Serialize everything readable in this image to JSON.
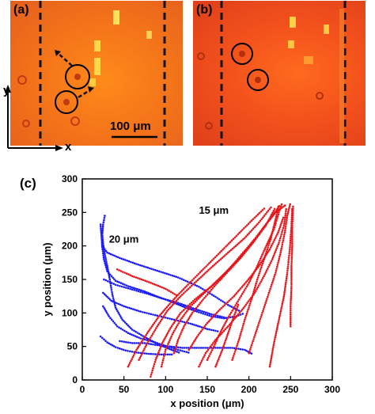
{
  "panels": {
    "a": {
      "label": "(a)",
      "scale_bar": "100 μm"
    },
    "b": {
      "label": "(b)"
    }
  },
  "axes_indicator": {
    "x": "x",
    "y": "y"
  },
  "chart_data": {
    "label": "(c)",
    "type": "scatter",
    "xlabel": "x position (μm)",
    "ylabel": "y position (μm)",
    "xlim": [
      0,
      300
    ],
    "ylim": [
      0,
      300
    ],
    "xticks": [
      0,
      50,
      100,
      150,
      200,
      250,
      300
    ],
    "yticks": [
      0,
      50,
      100,
      150,
      200,
      250,
      300
    ],
    "colors": {
      "blue": "#1a1aff",
      "red": "#e8141a"
    },
    "series": [
      {
        "name": "20 μm",
        "color": "blue",
        "tracks": [
          [
            [
              27,
              245
            ],
            [
              25,
              232
            ],
            [
              24,
              218
            ],
            [
              25,
              203
            ],
            [
              27,
              188
            ],
            [
              30,
              170
            ],
            [
              33,
              150
            ],
            [
              36,
              128
            ],
            [
              40,
              108
            ],
            [
              48,
              90
            ],
            [
              60,
              75
            ],
            [
              75,
              64
            ],
            [
              90,
              54
            ],
            [
              105,
              46
            ],
            [
              118,
              40
            ]
          ],
          [
            [
              22,
              232
            ],
            [
              23,
              215
            ],
            [
              24,
              198
            ],
            [
              26,
              180
            ],
            [
              30,
              162
            ],
            [
              40,
              148
            ],
            [
              55,
              140
            ],
            [
              75,
              132
            ],
            [
              95,
              122
            ],
            [
              115,
              115
            ],
            [
              135,
              106
            ],
            [
              155,
              98
            ],
            [
              175,
              92
            ]
          ],
          [
            [
              24,
              200
            ],
            [
              30,
              190
            ],
            [
              45,
              182
            ],
            [
              65,
              173
            ],
            [
              90,
              163
            ],
            [
              115,
              153
            ],
            [
              140,
              139
            ],
            [
              160,
              124
            ],
            [
              175,
              112
            ],
            [
              190,
              102
            ]
          ],
          [
            [
              26,
              150
            ],
            [
              40,
              142
            ],
            [
              60,
              135
            ],
            [
              80,
              128
            ],
            [
              100,
              120
            ],
            [
              120,
              110
            ],
            [
              140,
              101
            ],
            [
              155,
              95
            ],
            [
              170,
              92
            ],
            [
              185,
              95
            ],
            [
              195,
              100
            ]
          ],
          [
            [
              25,
              130
            ],
            [
              35,
              118
            ],
            [
              50,
              110
            ],
            [
              70,
              102
            ],
            [
              90,
              96
            ],
            [
              110,
              90
            ],
            [
              130,
              84
            ],
            [
              150,
              76
            ],
            [
              165,
              72
            ]
          ],
          [
            [
              25,
              110
            ],
            [
              32,
              95
            ],
            [
              42,
              80
            ],
            [
              55,
              70
            ],
            [
              70,
              62
            ],
            [
              85,
              57
            ],
            [
              100,
              51
            ],
            [
              115,
              45
            ],
            [
              130,
              40
            ]
          ],
          [
            [
              22,
              65
            ],
            [
              30,
              56
            ],
            [
              40,
              49
            ],
            [
              52,
              44
            ],
            [
              65,
              41
            ],
            [
              80,
              39
            ],
            [
              95,
              38
            ],
            [
              110,
              38
            ]
          ],
          [
            [
              45,
              58
            ],
            [
              60,
              55
            ],
            [
              75,
              55
            ],
            [
              90,
              52
            ],
            [
              105,
              50
            ],
            [
              120,
              48
            ],
            [
              140,
              48
            ],
            [
              155,
              48
            ],
            [
              165,
              48
            ],
            [
              180,
              48
            ],
            [
              195,
              45
            ],
            [
              205,
              38
            ]
          ]
        ]
      },
      {
        "name": "15 μm",
        "color": "red",
        "tracks": [
          [
            [
              55,
              20
            ],
            [
              65,
              45
            ],
            [
              78,
              70
            ],
            [
              92,
              95
            ],
            [
              108,
              118
            ],
            [
              125,
              140
            ],
            [
              145,
              165
            ],
            [
              165,
              190
            ],
            [
              185,
              215
            ],
            [
              205,
              240
            ],
            [
              220,
              258
            ]
          ],
          [
            [
              68,
              30
            ],
            [
              78,
              55
            ],
            [
              90,
              80
            ],
            [
              102,
              103
            ],
            [
              118,
              125
            ],
            [
              135,
              145
            ],
            [
              155,
              168
            ],
            [
              175,
              190
            ],
            [
              195,
              212
            ],
            [
              212,
              235
            ],
            [
              228,
              260
            ]
          ],
          [
            [
              82,
              5
            ],
            [
              88,
              30
            ],
            [
              96,
              55
            ],
            [
              106,
              78
            ],
            [
              118,
              100
            ],
            [
              135,
              120
            ],
            [
              155,
              140
            ],
            [
              172,
              160
            ],
            [
              188,
              182
            ],
            [
              205,
              205
            ],
            [
              220,
              230
            ],
            [
              232,
              258
            ]
          ],
          [
            [
              95,
              20
            ],
            [
              100,
              45
            ],
            [
              108,
              68
            ],
            [
              118,
              90
            ],
            [
              130,
              110
            ],
            [
              145,
              128
            ],
            [
              162,
              148
            ],
            [
              178,
              168
            ],
            [
              193,
              190
            ],
            [
              208,
              212
            ],
            [
              222,
              235
            ],
            [
              238,
              262
            ]
          ],
          [
            [
              110,
              40
            ],
            [
              115,
              60
            ],
            [
              122,
              80
            ],
            [
              132,
              100
            ],
            [
              145,
              120
            ],
            [
              160,
              142
            ],
            [
              175,
              162
            ],
            [
              190,
              182
            ],
            [
              205,
              205
            ],
            [
              218,
              228
            ],
            [
              232,
              250
            ],
            [
              245,
              262
            ]
          ],
          [
            [
              128,
              45
            ],
            [
              138,
              65
            ],
            [
              150,
              85
            ],
            [
              165,
              105
            ],
            [
              182,
              125
            ],
            [
              198,
              148
            ],
            [
              212,
              170
            ],
            [
              225,
              195
            ],
            [
              235,
              220
            ],
            [
              242,
              245
            ]
          ],
          [
            [
              150,
              30
            ],
            [
              158,
              50
            ],
            [
              166,
              72
            ],
            [
              176,
              95
            ],
            [
              188,
              120
            ],
            [
              200,
              145
            ],
            [
              210,
              170
            ],
            [
              220,
              198
            ],
            [
              230,
              225
            ],
            [
              236,
              250
            ],
            [
              240,
              265
            ]
          ],
          [
            [
              140,
              20
            ],
            [
              148,
              40
            ],
            [
              160,
              60
            ],
            [
              175,
              80
            ],
            [
              192,
              105
            ],
            [
              207,
              130
            ],
            [
              218,
              155
            ],
            [
              228,
              180
            ],
            [
              236,
              205
            ],
            [
              242,
              230
            ],
            [
              245,
              258
            ]
          ],
          [
            [
              180,
              30
            ],
            [
              188,
              60
            ],
            [
              195,
              90
            ],
            [
              203,
              120
            ],
            [
              210,
              150
            ],
            [
              218,
              180
            ],
            [
              226,
              210
            ],
            [
              232,
              240
            ],
            [
              236,
              262
            ]
          ],
          [
            [
              200,
              40
            ],
            [
              208,
              70
            ],
            [
              216,
              100
            ],
            [
              224,
              130
            ],
            [
              232,
              160
            ],
            [
              238,
              190
            ],
            [
              243,
              220
            ],
            [
              246,
              245
            ],
            [
              250,
              265
            ]
          ],
          [
            [
              225,
              20
            ],
            [
              230,
              55
            ],
            [
              236,
              90
            ],
            [
              242,
              125
            ],
            [
              246,
              160
            ],
            [
              249,
              195
            ],
            [
              251,
              230
            ],
            [
              252,
              258
            ]
          ],
          [
            [
              250,
              80
            ],
            [
              250,
              110
            ],
            [
              251,
              140
            ],
            [
              251,
              170
            ],
            [
              252,
              200
            ],
            [
              252,
              230
            ],
            [
              253,
              262
            ]
          ],
          [
            [
              42,
              165
            ],
            [
              60,
              155
            ],
            [
              80,
              146
            ],
            [
              100,
              136
            ],
            [
              115,
              125
            ]
          ],
          [
            [
              160,
              20
            ],
            [
              168,
              45
            ],
            [
              175,
              70
            ],
            [
              182,
              95
            ],
            [
              188,
              115
            ]
          ]
        ]
      }
    ]
  }
}
